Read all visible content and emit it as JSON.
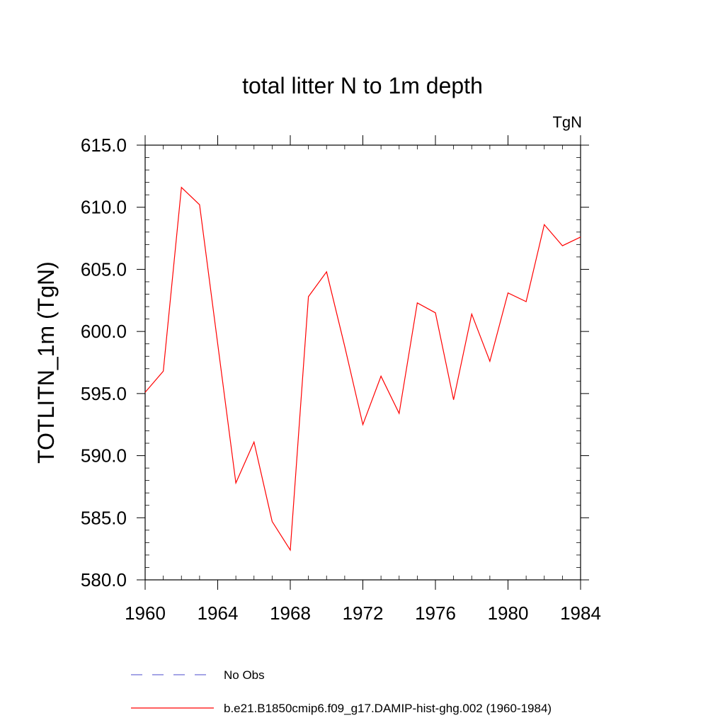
{
  "chart_data": {
    "type": "line",
    "title": "total litter N to 1m depth",
    "units_label": "TgN",
    "ylabel": "TOTLITN_1m  (TgN)",
    "xlabel": "",
    "xlim": [
      1960,
      1984
    ],
    "ylim": [
      580,
      615
    ],
    "x_ticks": [
      1960,
      1964,
      1968,
      1972,
      1976,
      1980,
      1984
    ],
    "x_tick_labels": [
      "1960",
      "1964",
      "1968",
      "1972",
      "1976",
      "1980",
      "1984"
    ],
    "y_ticks": [
      580,
      585,
      590,
      595,
      600,
      605,
      610,
      615
    ],
    "y_tick_labels": [
      "580.0",
      "585.0",
      "590.0",
      "595.0",
      "600.0",
      "605.0",
      "610.0",
      "615.0"
    ],
    "grid": false,
    "legend_position": "bottom",
    "series": [
      {
        "name": "No Obs",
        "style": "dashed",
        "color": "#6f6fd8",
        "x": [],
        "values": []
      },
      {
        "name": "b.e21.B1850cmip6.f09_g17.DAMIP-hist-ghg.002 (1960-1984)",
        "style": "solid",
        "color": "#ff0000",
        "x": [
          1960,
          1961,
          1962,
          1963,
          1964,
          1965,
          1966,
          1967,
          1968,
          1969,
          1970,
          1971,
          1972,
          1973,
          1974,
          1975,
          1976,
          1977,
          1978,
          1979,
          1980,
          1981,
          1982,
          1983,
          1984
        ],
        "values": [
          595.1,
          596.8,
          611.6,
          610.2,
          599.0,
          587.8,
          591.1,
          584.7,
          582.4,
          602.8,
          604.8,
          598.8,
          592.5,
          596.4,
          593.4,
          602.3,
          601.5,
          594.5,
          601.4,
          597.6,
          603.1,
          602.4,
          608.6,
          606.9,
          607.6
        ]
      }
    ]
  }
}
